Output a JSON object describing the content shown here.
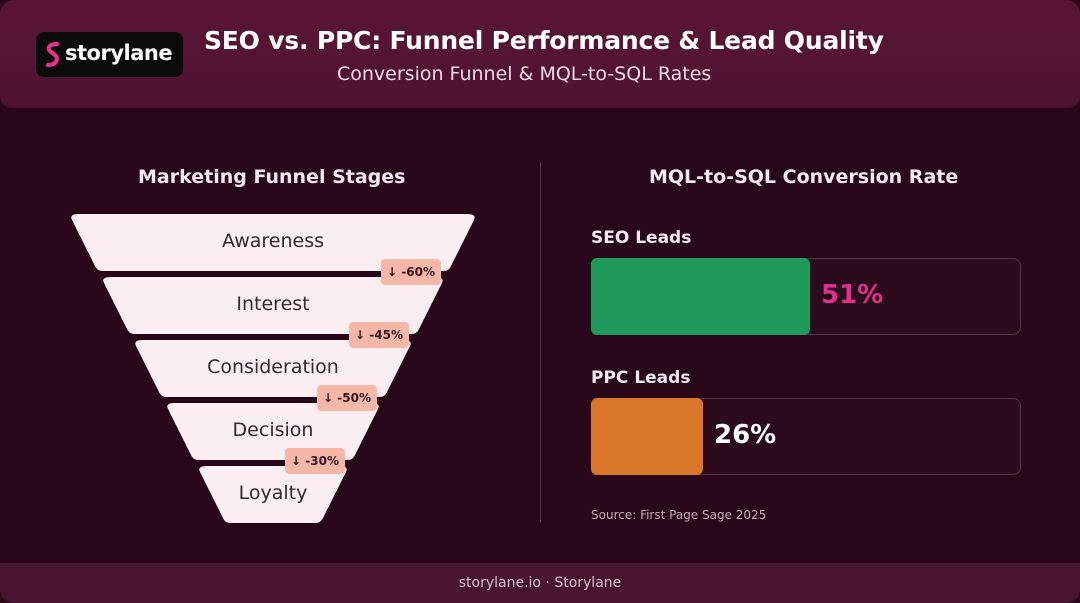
{
  "header": {
    "logo_text": "storylane",
    "title": "SEO vs. PPC: Funnel Performance & Lead Quality",
    "subtitle": "Conversion Funnel & MQL-to-SQL Rates"
  },
  "colors": {
    "background": "#280818",
    "header": "#561433",
    "funnel_fill": "#fbeef3",
    "badge": "#f4b7a8",
    "seo": "#1f9a5c",
    "ppc": "#d9762a",
    "seo_value_text": "#e0318a",
    "ppc_value_text": "#ffffff",
    "logo_mark": "#e8318b"
  },
  "chart_data": [
    {
      "type": "funnel",
      "title": "Marketing Funnel Stages",
      "stages": [
        "Awareness",
        "Interest",
        "Consideration",
        "Decision",
        "Loyalty"
      ],
      "drop_labels": [
        "↓ -60%",
        "↓ -45%",
        "↓ -50%",
        "↓ -30%"
      ],
      "drops": [
        -60,
        -45,
        -50,
        -30
      ]
    },
    {
      "type": "bar",
      "orientation": "horizontal",
      "title": "MQL-to-SQL Conversion Rate",
      "categories": [
        "SEO Leads",
        "PPC Leads"
      ],
      "values": [
        51,
        26
      ],
      "value_labels": [
        "51%",
        "26%"
      ],
      "xlim": [
        0,
        100
      ],
      "source": "Source: First Page Sage 2025"
    }
  ],
  "footer": {
    "text": "storylane.io · Storylane"
  }
}
